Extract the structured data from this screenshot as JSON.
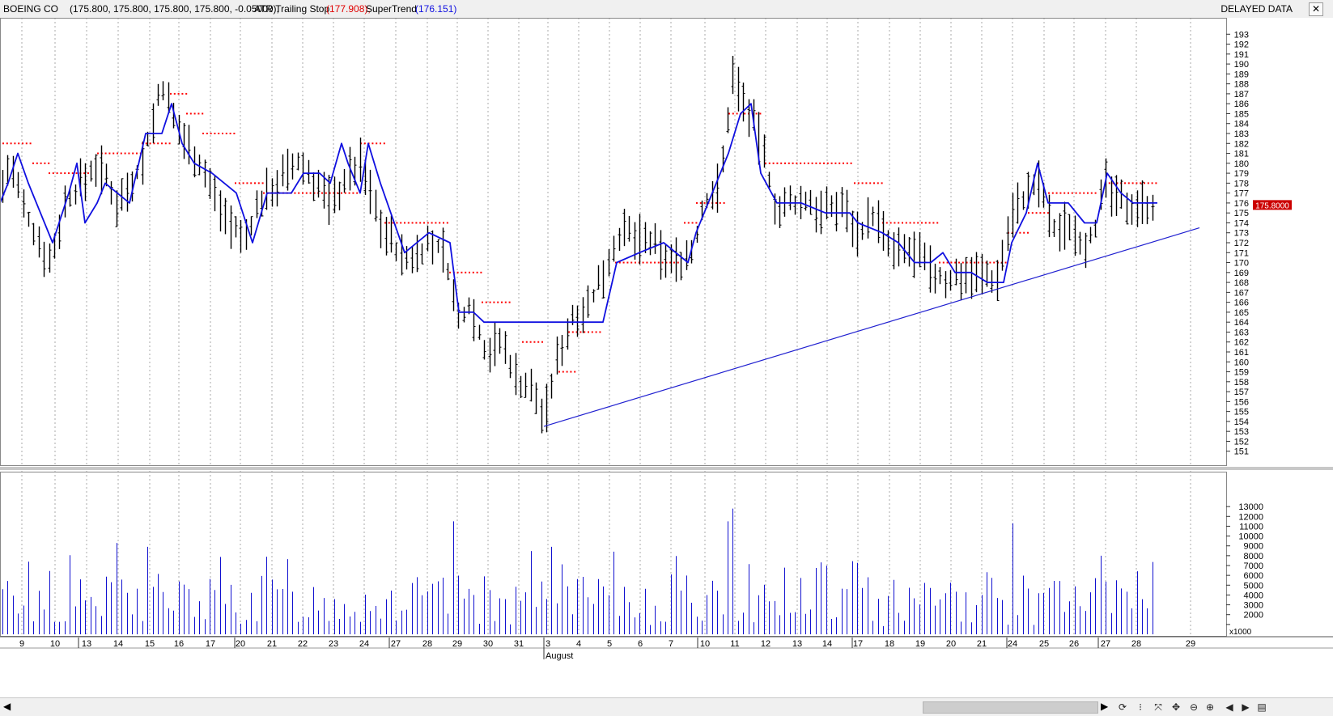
{
  "header": {
    "symbol": "BOEING CO",
    "ohlc": "(175.800, 175.800, 175.800, 175.800, -0.05000),",
    "atr_label": "ATR Trailing Stop",
    "atr_value": "(177.908),",
    "supertrend_label": "SuperTrend",
    "supertrend_value": "(176.151)",
    "delayed": "DELAYED DATA",
    "close_icon": "close-icon"
  },
  "chart_data": {
    "type": "bar",
    "price": {
      "y_ticks": [
        151,
        152,
        153,
        154,
        155,
        156,
        157,
        158,
        159,
        160,
        161,
        162,
        163,
        164,
        165,
        166,
        167,
        168,
        169,
        170,
        171,
        172,
        173,
        174,
        175,
        176,
        177,
        178,
        179,
        180,
        181,
        182,
        183,
        184,
        185,
        186,
        187,
        188,
        189,
        190,
        191,
        192,
        193
      ],
      "last_price_label": "175.8000",
      "ylim": [
        150,
        194
      ],
      "anchors": [
        [
          0,
          177
        ],
        [
          12,
          180
        ],
        [
          30,
          175
        ],
        [
          62,
          170
        ],
        [
          80,
          176
        ],
        [
          100,
          178
        ],
        [
          120,
          180
        ],
        [
          145,
          176
        ],
        [
          175,
          180
        ],
        [
          200,
          188
        ],
        [
          215,
          184
        ],
        [
          240,
          181
        ],
        [
          270,
          176
        ],
        [
          300,
          172
        ],
        [
          320,
          176
        ],
        [
          340,
          178
        ],
        [
          370,
          180
        ],
        [
          410,
          176
        ],
        [
          430,
          179
        ],
        [
          445,
          180
        ],
        [
          470,
          174
        ],
        [
          500,
          170
        ],
        [
          530,
          172
        ],
        [
          550,
          171
        ],
        [
          565,
          164
        ],
        [
          580,
          166
        ],
        [
          600,
          161
        ],
        [
          620,
          162
        ],
        [
          640,
          158
        ],
        [
          660,
          157
        ],
        [
          672,
          154
        ],
        [
          690,
          161
        ],
        [
          710,
          165
        ],
        [
          730,
          166
        ],
        [
          750,
          170
        ],
        [
          765,
          173
        ],
        [
          800,
          172
        ],
        [
          830,
          170
        ],
        [
          855,
          171
        ],
        [
          870,
          176
        ],
        [
          890,
          178
        ],
        [
          905,
          189
        ],
        [
          925,
          185
        ],
        [
          940,
          182
        ],
        [
          960,
          175
        ],
        [
          980,
          176
        ],
        [
          1000,
          176
        ],
        [
          1020,
          175
        ],
        [
          1040,
          176
        ],
        [
          1060,
          173
        ],
        [
          1080,
          175
        ],
        [
          1100,
          171
        ],
        [
          1130,
          171
        ],
        [
          1150,
          169
        ],
        [
          1170,
          168
        ],
        [
          1190,
          169
        ],
        [
          1210,
          169
        ],
        [
          1230,
          168
        ],
        [
          1250,
          175
        ],
        [
          1270,
          177
        ],
        [
          1285,
          178
        ],
        [
          1300,
          173
        ],
        [
          1320,
          174
        ],
        [
          1340,
          172
        ],
        [
          1355,
          174
        ],
        [
          1365,
          178
        ],
        [
          1380,
          176
        ],
        [
          1400,
          176
        ],
        [
          1430,
          176
        ]
      ],
      "supertrend": [
        [
          0,
          176
        ],
        [
          10,
          178
        ],
        [
          22,
          181
        ],
        [
          35,
          178
        ],
        [
          65,
          172
        ],
        [
          85,
          177
        ],
        [
          95,
          180
        ],
        [
          105,
          174
        ],
        [
          120,
          176
        ],
        [
          130,
          178
        ],
        [
          160,
          176
        ],
        [
          180,
          183
        ],
        [
          200,
          183
        ],
        [
          212,
          186
        ],
        [
          225,
          182
        ],
        [
          240,
          180
        ],
        [
          262,
          179
        ],
        [
          292,
          177
        ],
        [
          312,
          172
        ],
        [
          330,
          177
        ],
        [
          360,
          177
        ],
        [
          375,
          179
        ],
        [
          395,
          179
        ],
        [
          408,
          178
        ],
        [
          422,
          182
        ],
        [
          430,
          180
        ],
        [
          445,
          177
        ],
        [
          455,
          182
        ],
        [
          470,
          178
        ],
        [
          500,
          171
        ],
        [
          530,
          173
        ],
        [
          556,
          172
        ],
        [
          567,
          165
        ],
        [
          585,
          165
        ],
        [
          598,
          164
        ],
        [
          745,
          164
        ],
        [
          762,
          170
        ],
        [
          790,
          171
        ],
        [
          820,
          172
        ],
        [
          850,
          170
        ],
        [
          860,
          173
        ],
        [
          885,
          178
        ],
        [
          900,
          181
        ],
        [
          915,
          185
        ],
        [
          928,
          186
        ],
        [
          940,
          179
        ],
        [
          960,
          176
        ],
        [
          990,
          176
        ],
        [
          1020,
          175
        ],
        [
          1050,
          175
        ],
        [
          1060,
          174
        ],
        [
          1090,
          173
        ],
        [
          1110,
          172
        ],
        [
          1130,
          170
        ],
        [
          1150,
          170
        ],
        [
          1165,
          171
        ],
        [
          1180,
          169
        ],
        [
          1200,
          169
        ],
        [
          1220,
          168
        ],
        [
          1240,
          168
        ],
        [
          1250,
          172
        ],
        [
          1268,
          175
        ],
        [
          1282,
          180
        ],
        [
          1295,
          176
        ],
        [
          1320,
          176
        ],
        [
          1340,
          174
        ],
        [
          1355,
          174
        ],
        [
          1368,
          179
        ],
        [
          1385,
          177
        ],
        [
          1400,
          176
        ],
        [
          1430,
          176
        ]
      ],
      "atr_stop_segments": [
        [
          3,
          40,
          182
        ],
        [
          40,
          60,
          180
        ],
        [
          60,
          110,
          179
        ],
        [
          120,
          175,
          181
        ],
        [
          175,
          210,
          182
        ],
        [
          210,
          230,
          187
        ],
        [
          230,
          250,
          185
        ],
        [
          250,
          290,
          183
        ],
        [
          290,
          325,
          178
        ],
        [
          325,
          445,
          177
        ],
        [
          445,
          475,
          182
        ],
        [
          475,
          555,
          174
        ],
        [
          555,
          595,
          169
        ],
        [
          595,
          632,
          166
        ],
        [
          645,
          670,
          162
        ],
        [
          690,
          710,
          159
        ],
        [
          702,
          745,
          163
        ],
        [
          760,
          840,
          170
        ],
        [
          845,
          860,
          174
        ],
        [
          860,
          895,
          176
        ],
        [
          900,
          940,
          185
        ],
        [
          945,
          1055,
          180
        ],
        [
          1055,
          1090,
          178
        ],
        [
          1090,
          1160,
          174
        ],
        [
          1160,
          1245,
          170
        ],
        [
          1245,
          1270,
          173
        ],
        [
          1270,
          1295,
          175
        ],
        [
          1295,
          1355,
          177
        ],
        [
          1365,
          1432,
          178
        ]
      ],
      "trendline": {
        "x1": 672,
        "y1": 153.5,
        "x2": 1482,
        "y2": 173.5
      }
    },
    "volume": {
      "y_ticks": [
        1000,
        2000,
        3000,
        4000,
        5000,
        6000,
        7000,
        8000,
        9000,
        10000,
        11000,
        12000,
        13000
      ],
      "unit_label": "x1000",
      "ylim": [
        0,
        14000
      ]
    },
    "x_labels": [
      {
        "t": "9",
        "x": 27
      },
      {
        "t": "10",
        "x": 68
      },
      {
        "t": "13",
        "x": 107
      },
      {
        "t": "14",
        "x": 146
      },
      {
        "t": "15",
        "x": 185
      },
      {
        "t": "16",
        "x": 221
      },
      {
        "t": "17",
        "x": 260
      },
      {
        "t": "20",
        "x": 297
      },
      {
        "t": "21",
        "x": 336
      },
      {
        "t": "22",
        "x": 374
      },
      {
        "t": "23",
        "x": 412
      },
      {
        "t": "24",
        "x": 450
      },
      {
        "t": "27",
        "x": 489
      },
      {
        "t": "28",
        "x": 528
      },
      {
        "t": "29",
        "x": 565
      },
      {
        "t": "30",
        "x": 603
      },
      {
        "t": "31",
        "x": 641
      },
      {
        "t": "3",
        "x": 677
      },
      {
        "t": "4",
        "x": 715
      },
      {
        "t": "5",
        "x": 753
      },
      {
        "t": "6",
        "x": 791
      },
      {
        "t": "7",
        "x": 829
      },
      {
        "t": "10",
        "x": 871
      },
      {
        "t": "11",
        "x": 908
      },
      {
        "t": "12",
        "x": 946
      },
      {
        "t": "13",
        "x": 985
      },
      {
        "t": "14",
        "x": 1022
      },
      {
        "t": "17",
        "x": 1060
      },
      {
        "t": "18",
        "x": 1099
      },
      {
        "t": "19",
        "x": 1137
      },
      {
        "t": "20",
        "x": 1175
      },
      {
        "t": "21",
        "x": 1213
      },
      {
        "t": "24",
        "x": 1251
      },
      {
        "t": "25",
        "x": 1290
      },
      {
        "t": "26",
        "x": 1327
      },
      {
        "t": "27",
        "x": 1366
      },
      {
        "t": "28",
        "x": 1404
      },
      {
        "t": "29",
        "x": 1471
      }
    ],
    "month_label": "August",
    "dividers_x": [
      97,
      290,
      481,
      672,
      862,
      1053,
      1244,
      1357
    ]
  },
  "colors": {
    "bars": "#000000",
    "supertrend": "#1010e0",
    "atr_stop": "#ff0000",
    "volume": "#1010d0",
    "trendline": "#2020d0",
    "price_tag": "#cc0000",
    "grid": "#a8a8a8"
  },
  "footer": {
    "scroll_left_icon": "◀",
    "scroll_right_icon": "▶",
    "tools": [
      "⟳",
      "⁝",
      "⤧",
      "✥",
      "⊖",
      "⊕",
      "◀",
      "▶",
      "▤"
    ]
  }
}
